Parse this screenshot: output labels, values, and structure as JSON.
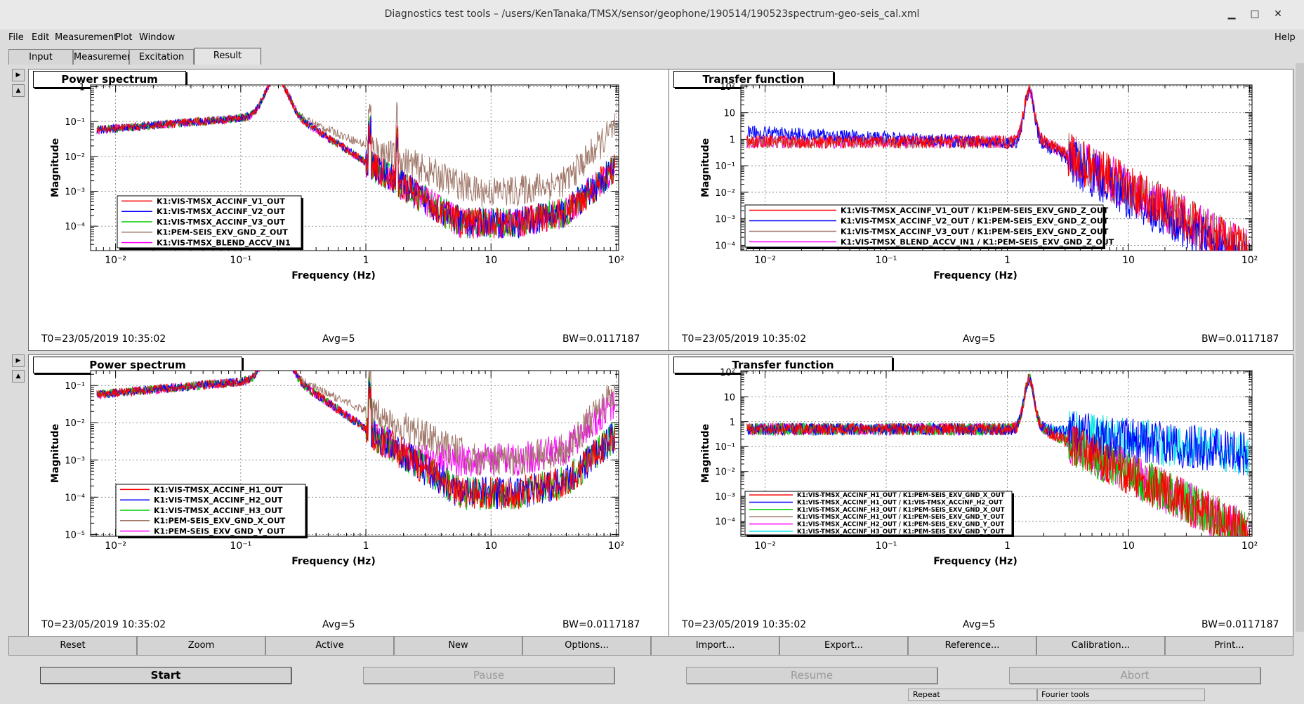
{
  "window": {
    "title": "Diagnostics test tools – /users/KenTanaka/TMSX/sensor/geophone/190514/190523spectrum-geo-seis_cal.xml"
  },
  "menu": [
    "File",
    "Edit",
    "Measurement",
    "Plot",
    "Window",
    "Help"
  ],
  "tabs": [
    "Input",
    "Measurement",
    "Excitation",
    "Result"
  ],
  "panes": [
    {
      "title": "Power spectrum",
      "ylabel": "Magnitude",
      "xlabel": "Frequency (Hz)",
      "t0": "T0=23/05/2019 10:35:02",
      "avg": "Avg=5",
      "bw": "BW=0.0117187",
      "yticks": [
        "1",
        "10⁻¹",
        "10⁻²",
        "10⁻³",
        "10⁻⁴"
      ],
      "xticks": [
        "10⁻²",
        "10⁻¹",
        "1",
        "10",
        "10²"
      ],
      "legend": [
        "K1:VIS-TMSX_ACCINF_V1_OUT",
        "K1:VIS-TMSX_ACCINF_V2_OUT",
        "K1:VIS-TMSX_ACCINF_V3_OUT",
        "K1:PEM-SEIS_EXV_GND_Z_OUT",
        "K1:VIS-TMSX_BLEND_ACCV_IN1"
      ],
      "colors": [
        "#ff0000",
        "#0000ff",
        "#00cc00",
        "#a0786a",
        "#ff00ff"
      ]
    },
    {
      "title": "Transfer function",
      "ylabel": "Magnitude",
      "xlabel": "Frequency (Hz)",
      "t0": "T0=23/05/2019 10:35:02",
      "avg": "Avg=5",
      "bw": "BW=0.0117187",
      "yticks": [
        "10²",
        "10",
        "1",
        "10⁻¹",
        "10⁻²",
        "10⁻³",
        "10⁻⁴"
      ],
      "xticks": [
        "10⁻²",
        "10⁻¹",
        "1",
        "10",
        "10²"
      ],
      "legend": [
        "K1:VIS-TMSX_ACCINF_V1_OUT / K1:PEM-SEIS_EXV_GND_Z_OUT",
        "K1:VIS-TMSX_ACCINF_V2_OUT / K1:PEM-SEIS_EXV_GND_Z_OUT",
        "K1:VIS-TMSX_ACCINF_V3_OUT / K1:PEM-SEIS_EXV_GND_Z_OUT",
        "K1:VIS-TMSX_BLEND_ACCV_IN1 / K1:PEM-SEIS_EXV_GND_Z_OUT"
      ],
      "colors": [
        "#ff0000",
        "#0000ff",
        "#a0786a",
        "#ff00ff"
      ]
    },
    {
      "title": "Power spectrum",
      "ylabel": "Magnitude",
      "xlabel": "Frequency (Hz)",
      "t0": "T0=23/05/2019 10:35:02",
      "avg": "Avg=5",
      "bw": "BW=0.0117187",
      "yticks": [
        "10⁻¹",
        "10⁻²",
        "10⁻³",
        "10⁻⁴",
        "10⁻⁵"
      ],
      "xticks": [
        "10⁻²",
        "10⁻¹",
        "1",
        "10",
        "10²"
      ],
      "legend": [
        "K1:VIS-TMSX_ACCINF_H1_OUT",
        "K1:VIS-TMSX_ACCINF_H2_OUT",
        "K1:VIS-TMSX_ACCINF_H3_OUT",
        "K1:PEM-SEIS_EXV_GND_X_OUT",
        "K1:PEM-SEIS_EXV_GND_Y_OUT"
      ],
      "colors": [
        "#ff0000",
        "#0000ff",
        "#00cc00",
        "#a0786a",
        "#ff00ff"
      ]
    },
    {
      "title": "Transfer function",
      "ylabel": "Magnitude",
      "xlabel": "Frequency (Hz)",
      "t0": "T0=23/05/2019 10:35:02",
      "avg": "Avg=5",
      "bw": "BW=0.0117187",
      "yticks": [
        "10²",
        "10",
        "1",
        "10⁻¹",
        "10⁻²",
        "10⁻³",
        "10⁻⁴"
      ],
      "xticks": [
        "10⁻²",
        "10⁻¹",
        "1",
        "10",
        "10²"
      ],
      "legend": [
        "K1:VIS-TMSX_ACCINF_H1_OUT / K1:PEM-SEIS_EXV_GND_X_OUT",
        "K1:VIS-TMSX_ACCINF_H1_OUT / K1:VIS-TMSX_ACCINF_H2_OUT",
        "K1:VIS-TMSX_ACCINF_H3_OUT / K1:PEM-SEIS_EXV_GND_X_OUT",
        "K1:VIS-TMSX_ACCINF_H1_OUT / K1:PEM-SEIS_EXV_GND_Y_OUT",
        "K1:VIS-TMSX_ACCINF_H2_OUT / K1:PEM-SEIS_EXV_GND_Y_OUT",
        "K1:VIS-TMSX_ACCINF_H3_OUT / K1:PEM-SEIS_EXV_GND_Y_OUT"
      ],
      "colors": [
        "#ff0000",
        "#0000ff",
        "#00cc00",
        "#a0786a",
        "#ff00ff",
        "#00e5e5"
      ]
    }
  ],
  "toolbar": [
    "Reset",
    "Zoom",
    "Active",
    "New",
    "Options...",
    "Import...",
    "Export...",
    "Reference...",
    "Calibration...",
    "Print..."
  ],
  "controls": {
    "start": "Start",
    "pause": "Pause",
    "resume": "Resume",
    "abort": "Abort"
  },
  "status": {
    "repeat": "Repeat",
    "fourier": "Fourier tools"
  }
}
